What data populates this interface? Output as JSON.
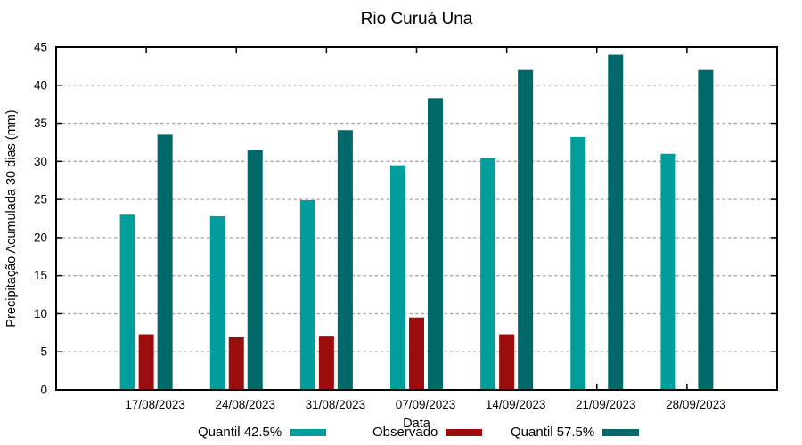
{
  "chart_data": {
    "type": "bar",
    "title": "Rio Curuá Una",
    "xlabel": "Data",
    "ylabel": "Precipitação Acumulada 30 dias (mm)",
    "ylim": [
      0,
      45
    ],
    "yticks": [
      0,
      5,
      10,
      15,
      20,
      25,
      30,
      35,
      40,
      45
    ],
    "grid": "horizontal-dashed",
    "legend_position": "bottom",
    "categories": [
      "17/08/2023",
      "24/08/2023",
      "31/08/2023",
      "07/09/2023",
      "14/09/2023",
      "21/09/2023",
      "28/09/2023"
    ],
    "series": [
      {
        "name": "Quantil 42.5%",
        "color": "#009D9D",
        "values": [
          23.0,
          22.8,
          24.9,
          29.5,
          30.4,
          33.2,
          31.0
        ]
      },
      {
        "name": "Observado",
        "color": "#9B0D0D",
        "values": [
          7.3,
          6.9,
          7.0,
          9.5,
          7.3,
          null,
          null
        ]
      },
      {
        "name": "Quantil 57.5%",
        "color": "#006868",
        "values": [
          33.5,
          31.5,
          34.1,
          38.3,
          42.0,
          44.0,
          42.0
        ]
      }
    ],
    "colors": {
      "grid": "#A8A8A8",
      "axis": "#000000",
      "background": "#FFFFFF"
    }
  }
}
